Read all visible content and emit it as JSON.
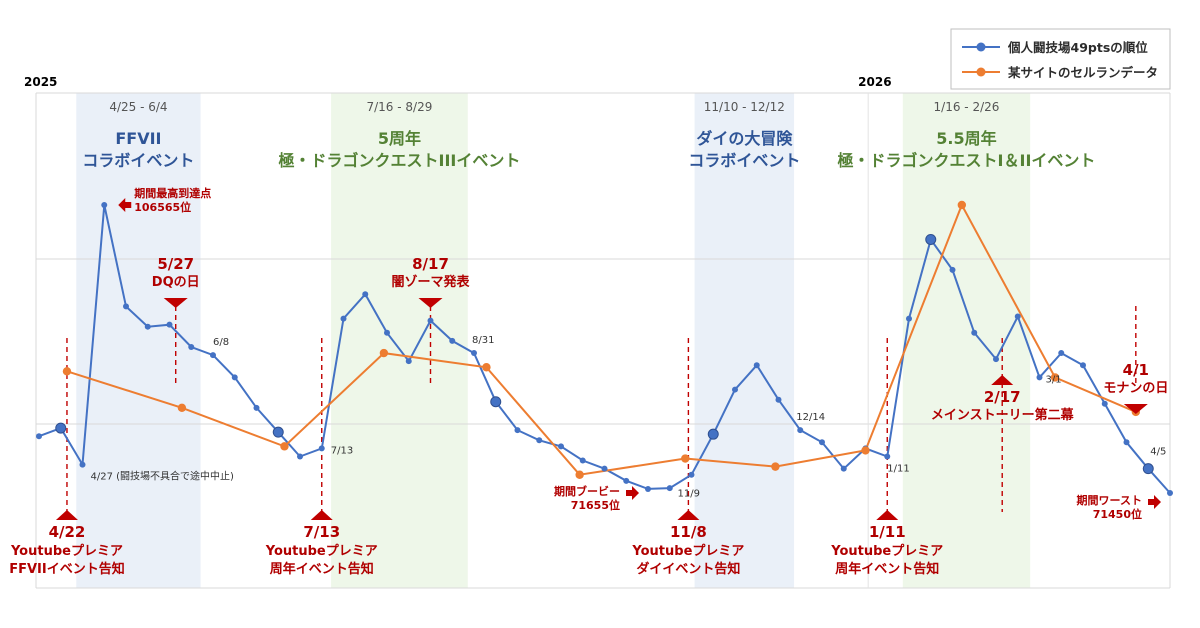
{
  "chart_data": {
    "type": "line",
    "title": "",
    "xlabel": "",
    "ylabel": "",
    "grid": true,
    "legend_position": "top-right",
    "colors": {
      "series1": "#4472c4",
      "series2": "#ed7d31",
      "annotation": "#c00000",
      "band_blue": "#eaf0f8",
      "band_green": "#eef7e9"
    },
    "years": [
      {
        "label": "2025",
        "at": "2025-04"
      },
      {
        "label": "2026",
        "at": "2026-01"
      }
    ],
    "event_periods": [
      {
        "range": "4/25 - 6/4",
        "start": "2025-04-25",
        "end": "2025-06-04",
        "band": "blue",
        "lines": [
          "FFVII",
          "コラボイベント"
        ]
      },
      {
        "range": "7/16 - 8/29",
        "start": "2025-07-16",
        "end": "2025-08-29",
        "band": "green",
        "lines": [
          "5周年",
          "極・ドラゴンクエストIIIイベント"
        ]
      },
      {
        "range": "11/10 - 12/12",
        "start": "2025-11-10",
        "end": "2025-12-12",
        "band": "blue",
        "lines": [
          "ダイの大冒険",
          "コラボイベント"
        ]
      },
      {
        "range": "1/16 - 2/26",
        "start": "2026-01-16",
        "end": "2026-02-26",
        "band": "green",
        "lines": [
          "5.5周年",
          "極・ドラゴンクエストI＆IIイベント"
        ]
      }
    ],
    "series": [
      {
        "name": "個人闘技場49ptsの順位",
        "points": [
          {
            "x": "2025-04-13",
            "y": 0.43
          },
          {
            "x": "2025-04-20",
            "y": 0.45
          },
          {
            "x": "2025-04-27",
            "y": 0.36
          },
          {
            "x": "2025-05-04",
            "y": 1.0
          },
          {
            "x": "2025-05-11",
            "y": 0.75
          },
          {
            "x": "2025-05-18",
            "y": 0.7
          },
          {
            "x": "2025-05-25",
            "y": 0.705
          },
          {
            "x": "2025-06-01",
            "y": 0.65
          },
          {
            "x": "2025-06-08",
            "y": 0.63
          },
          {
            "x": "2025-06-15",
            "y": 0.575
          },
          {
            "x": "2025-06-22",
            "y": 0.5
          },
          {
            "x": "2025-06-29",
            "y": 0.44
          },
          {
            "x": "2025-07-06",
            "y": 0.38
          },
          {
            "x": "2025-07-13",
            "y": 0.4
          },
          {
            "x": "2025-07-20",
            "y": 0.72
          },
          {
            "x": "2025-07-27",
            "y": 0.78
          },
          {
            "x": "2025-08-03",
            "y": 0.685
          },
          {
            "x": "2025-08-10",
            "y": 0.615
          },
          {
            "x": "2025-08-17",
            "y": 0.715
          },
          {
            "x": "2025-08-24",
            "y": 0.665
          },
          {
            "x": "2025-08-31",
            "y": 0.635
          },
          {
            "x": "2025-09-07",
            "y": 0.515
          },
          {
            "x": "2025-09-14",
            "y": 0.445
          },
          {
            "x": "2025-09-21",
            "y": 0.42
          },
          {
            "x": "2025-09-28",
            "y": 0.405
          },
          {
            "x": "2025-10-05",
            "y": 0.37
          },
          {
            "x": "2025-10-12",
            "y": 0.35
          },
          {
            "x": "2025-10-19",
            "y": 0.32
          },
          {
            "x": "2025-10-26",
            "y": 0.3
          },
          {
            "x": "2025-11-02",
            "y": 0.302
          },
          {
            "x": "2025-11-09",
            "y": 0.335
          },
          {
            "x": "2025-11-16",
            "y": 0.435
          },
          {
            "x": "2025-11-23",
            "y": 0.545
          },
          {
            "x": "2025-11-30",
            "y": 0.605
          },
          {
            "x": "2025-12-07",
            "y": 0.52
          },
          {
            "x": "2025-12-14",
            "y": 0.445
          },
          {
            "x": "2025-12-21",
            "y": 0.415
          },
          {
            "x": "2025-12-28",
            "y": 0.35
          },
          {
            "x": "2026-01-04",
            "y": 0.4
          },
          {
            "x": "2026-01-11",
            "y": 0.38
          },
          {
            "x": "2026-01-18",
            "y": 0.72
          },
          {
            "x": "2026-01-25",
            "y": 0.915
          },
          {
            "x": "2026-02-01",
            "y": 0.84
          },
          {
            "x": "2026-02-08",
            "y": 0.685
          },
          {
            "x": "2026-02-15",
            "y": 0.62
          },
          {
            "x": "2026-02-22",
            "y": 0.725
          },
          {
            "x": "2026-03-01",
            "y": 0.575
          },
          {
            "x": "2026-03-08",
            "y": 0.635
          },
          {
            "x": "2026-03-15",
            "y": 0.605
          },
          {
            "x": "2026-03-22",
            "y": 0.51
          },
          {
            "x": "2026-03-29",
            "y": 0.415
          },
          {
            "x": "2026-04-05",
            "y": 0.35
          },
          {
            "x": "2026-04-12",
            "y": 0.29
          }
        ]
      },
      {
        "name": "某サイトのセルランデータ",
        "points": [
          {
            "x": "2025-04-22",
            "y": 0.59
          },
          {
            "x": "2025-05-29",
            "y": 0.5
          },
          {
            "x": "2025-07-01",
            "y": 0.405
          },
          {
            "x": "2025-08-02",
            "y": 0.635
          },
          {
            "x": "2025-09-04",
            "y": 0.6
          },
          {
            "x": "2025-10-04",
            "y": 0.335
          },
          {
            "x": "2025-11-07",
            "y": 0.375
          },
          {
            "x": "2025-12-06",
            "y": 0.355
          },
          {
            "x": "2026-01-04",
            "y": 0.395
          },
          {
            "x": "2026-02-04",
            "y": 1.0
          },
          {
            "x": "2026-03-06",
            "y": 0.575
          },
          {
            "x": "2026-04-01",
            "y": 0.49
          }
        ]
      }
    ],
    "emphasized_points": [
      {
        "x": "2025-04-20",
        "series": 0
      },
      {
        "x": "2025-06-29",
        "series": 0
      },
      {
        "x": "2025-09-07",
        "series": 0
      },
      {
        "x": "2025-11-16",
        "series": 0
      },
      {
        "x": "2026-01-25",
        "series": 0
      },
      {
        "x": "2026-04-05",
        "series": 0
      }
    ],
    "date_labels": [
      {
        "text": "4/27 (闘技場不具合で途中中止)",
        "x": "2025-04-27"
      },
      {
        "text": "6/8",
        "x": "2025-06-08"
      },
      {
        "text": "7/13",
        "x": "2025-07-13"
      },
      {
        "text": "8/31",
        "x": "2025-08-31"
      },
      {
        "text": "11/9",
        "x": "2025-11-09"
      },
      {
        "text": "12/14",
        "x": "2025-12-14"
      },
      {
        "text": "1/11",
        "x": "2026-01-11"
      },
      {
        "text": "3/1",
        "x": "2026-03-01"
      },
      {
        "text": "4/5",
        "x": "2026-04-05"
      }
    ],
    "markers_up": [
      {
        "date": "2025-04-22",
        "lines": [
          "4/22",
          "Youtubeプレミア",
          "FFVIIイベント告知"
        ]
      },
      {
        "date": "2025-07-13",
        "lines": [
          "7/13",
          "Youtubeプレミア",
          "周年イベント告知"
        ]
      },
      {
        "date": "2025-11-08",
        "lines": [
          "11/8",
          "Youtubeプレミア",
          "ダイイベント告知"
        ]
      },
      {
        "date": "2026-01-11",
        "lines": [
          "1/11",
          "Youtubeプレミア",
          "周年イベント告知"
        ]
      },
      {
        "date": "2026-02-17",
        "lines": [
          "2/17",
          "メインストーリー第二幕"
        ]
      }
    ],
    "markers_down": [
      {
        "date": "2025-05-27",
        "lines": [
          "5/27",
          "DQの日"
        ]
      },
      {
        "date": "2025-08-17",
        "lines": [
          "8/17",
          "闇ゾーマ発表"
        ]
      },
      {
        "date": "2026-04-01",
        "lines": [
          "4/1",
          "モナンの日"
        ]
      }
    ],
    "extremes": [
      {
        "x": "2025-05-04",
        "lines": [
          "期間最高到達点",
          "106565位"
        ]
      },
      {
        "x": "2025-10-26",
        "lines": [
          "期間ブービー",
          "71655位"
        ]
      },
      {
        "x": "2026-04-12",
        "lines": [
          "期間ワースト",
          "71450位"
        ]
      }
    ]
  }
}
